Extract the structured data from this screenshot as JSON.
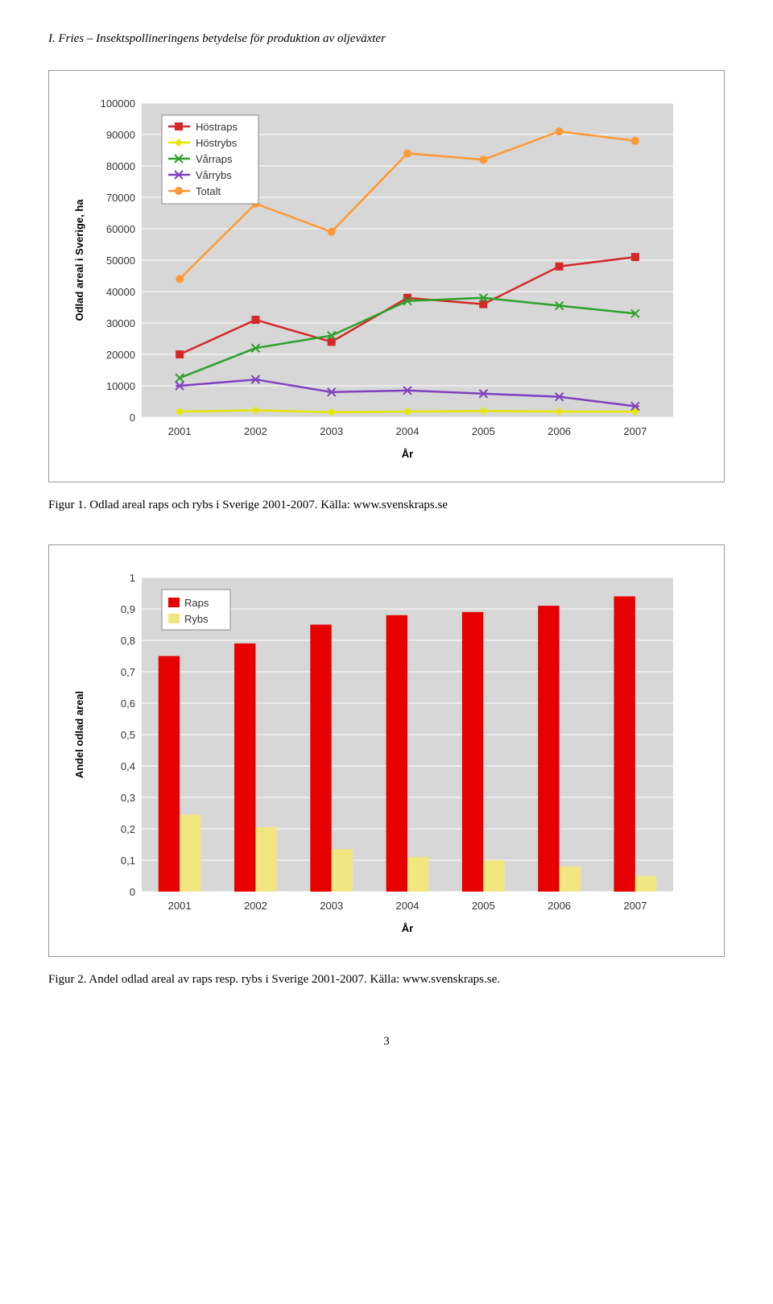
{
  "header": "I. Fries – Insektspollineringens betydelse för produktion av oljeväxter",
  "page_number": "3",
  "chart1": {
    "type": "line",
    "caption": "Figur 1. Odlad areal raps och rybs i Sverige 2001-2007. Källa: www.svenskraps.se",
    "x_label": "År",
    "y_label": "Odlad areal i Sverige, ha",
    "x_categories": [
      "2001",
      "2002",
      "2003",
      "2004",
      "2005",
      "2006",
      "2007"
    ],
    "y_ticks": [
      0,
      10000,
      20000,
      30000,
      40000,
      50000,
      60000,
      70000,
      80000,
      90000,
      100000
    ],
    "y_tick_labels": [
      "0",
      "10000",
      "20000",
      "30000",
      "40000",
      "50000",
      "60000",
      "70000",
      "80000",
      "90000",
      "100000"
    ],
    "ylim": [
      0,
      100000
    ],
    "series": [
      {
        "name": "Höstraps",
        "color": "#d62728",
        "marker": "square",
        "values": [
          20000,
          31000,
          24000,
          38000,
          36000,
          48000,
          51000
        ]
      },
      {
        "name": "Höstrybs",
        "color": "#e6e600",
        "marker": "diamond",
        "values": [
          1800,
          2200,
          1600,
          1800,
          2000,
          1800,
          1800
        ]
      },
      {
        "name": "Vårraps",
        "color": "#2ca02c",
        "marker": "x",
        "values": [
          12500,
          22000,
          26000,
          37000,
          38000,
          35500,
          33000
        ]
      },
      {
        "name": "Vårrybs",
        "color": "#8040c0",
        "marker": "star",
        "values": [
          10000,
          12000,
          8000,
          8500,
          7500,
          6500,
          3500
        ]
      },
      {
        "name": "Totalt",
        "color": "#ff9933",
        "marker": "circle",
        "values": [
          44000,
          68000,
          59000,
          84000,
          82000,
          91000,
          88000
        ]
      }
    ],
    "legend_box_border": "#888888",
    "background_color": "#d7d7d7",
    "grid_color": "#ffffff",
    "label_fontsize": 13,
    "tick_fontsize": 13,
    "line_width": 2.5,
    "marker_size": 5
  },
  "chart2": {
    "type": "bar",
    "caption": "Figur 2. Andel odlad areal av raps resp. rybs i Sverige 2001-2007. Källa: www.svenskraps.se.",
    "x_label": "År",
    "y_label": "Andel odlad areal",
    "x_categories": [
      "2001",
      "2002",
      "2003",
      "2004",
      "2005",
      "2006",
      "2007"
    ],
    "y_ticks": [
      0,
      0.1,
      0.2,
      0.3,
      0.4,
      0.5,
      0.6,
      0.7,
      0.8,
      0.9,
      1
    ],
    "y_tick_labels": [
      "0",
      "0,1",
      "0,2",
      "0,3",
      "0,4",
      "0,5",
      "0,6",
      "0,7",
      "0,8",
      "0,9",
      "1"
    ],
    "ylim": [
      0,
      1
    ],
    "series": [
      {
        "name": "Raps",
        "color": "#e60000",
        "values": [
          0.75,
          0.79,
          0.85,
          0.88,
          0.89,
          0.91,
          0.94
        ]
      },
      {
        "name": "Rybs",
        "color": "#f2e680",
        "values": [
          0.245,
          0.205,
          0.135,
          0.11,
          0.1,
          0.08,
          0.05
        ]
      }
    ],
    "legend_box_border": "#888888",
    "background_color": "#d7d7d7",
    "grid_color": "#ffffff",
    "label_fontsize": 13,
    "tick_fontsize": 13,
    "bar_group_gap": 0.35,
    "bar_width": 0.28
  }
}
